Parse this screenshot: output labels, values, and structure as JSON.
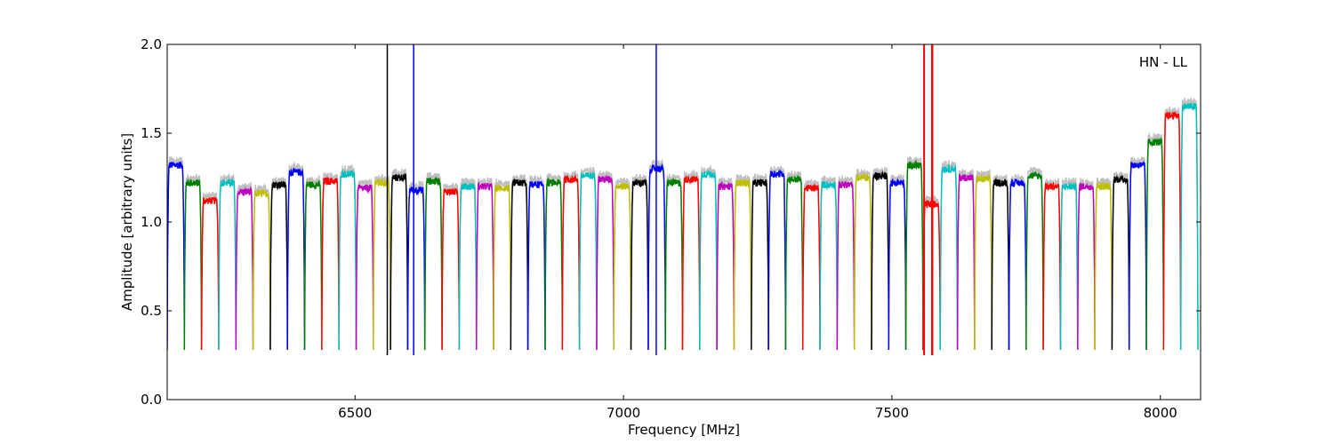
{
  "chart_data": {
    "type": "line",
    "annotation": "HN - LL",
    "xlabel": "Frequency [MHz]",
    "ylabel": "Amplitude [arbitrary units]",
    "xlim": [
      6150,
      8075
    ],
    "ylim": [
      0.0,
      2.0
    ],
    "x_ticks": [
      6500,
      7000,
      7500,
      8000
    ],
    "x_tick_labels": [
      "6500",
      "7000",
      "7500",
      "8000"
    ],
    "y_ticks": [
      0.0,
      0.5,
      1.0,
      1.5,
      2.0
    ],
    "y_tick_labels": [
      "0.0",
      "0.5",
      "1.0",
      "1.5",
      "2.0"
    ],
    "grid": false,
    "series_colors": [
      "#0000ff",
      "#008000",
      "#ff0000",
      "#00bfbf",
      "#bf00bf",
      "#bfbf00",
      "#000000"
    ],
    "reference_color": "#bfbfbf",
    "subband_width_mhz": 32,
    "subbands": [
      {
        "start": 6150,
        "level": 1.32
      },
      {
        "start": 6182,
        "level": 1.22
      },
      {
        "start": 6214,
        "level": 1.12
      },
      {
        "start": 6246,
        "level": 1.22
      },
      {
        "start": 6278,
        "level": 1.17
      },
      {
        "start": 6310,
        "level": 1.16
      },
      {
        "start": 6342,
        "level": 1.21
      },
      {
        "start": 6374,
        "level": 1.28
      },
      {
        "start": 6406,
        "level": 1.21
      },
      {
        "start": 6438,
        "level": 1.23
      },
      {
        "start": 6470,
        "level": 1.27
      },
      {
        "start": 6502,
        "level": 1.19
      },
      {
        "start": 6534,
        "level": 1.22
      },
      {
        "start": 6566,
        "level": 1.25,
        "spikes": [
          {
            "x": 6560,
            "y": 2.0,
            "width": 1.5
          }
        ]
      },
      {
        "start": 6598,
        "level": 1.18,
        "spikes": [
          {
            "x": 6609,
            "y": 2.0,
            "width": 1.5
          }
        ]
      },
      {
        "start": 6630,
        "level": 1.23
      },
      {
        "start": 6662,
        "level": 1.17
      },
      {
        "start": 6694,
        "level": 1.2
      },
      {
        "start": 6726,
        "level": 1.2
      },
      {
        "start": 6758,
        "level": 1.19
      },
      {
        "start": 6790,
        "level": 1.22
      },
      {
        "start": 6822,
        "level": 1.21
      },
      {
        "start": 6854,
        "level": 1.22
      },
      {
        "start": 6886,
        "level": 1.24
      },
      {
        "start": 6918,
        "level": 1.26
      },
      {
        "start": 6950,
        "level": 1.24
      },
      {
        "start": 6982,
        "level": 1.2
      },
      {
        "start": 7014,
        "level": 1.22
      },
      {
        "start": 7046,
        "level": 1.3,
        "spikes": [
          {
            "x": 7061,
            "y": 2.0,
            "width": 1.5
          }
        ]
      },
      {
        "start": 7078,
        "level": 1.22
      },
      {
        "start": 7110,
        "level": 1.24
      },
      {
        "start": 7142,
        "level": 1.27
      },
      {
        "start": 7174,
        "level": 1.2
      },
      {
        "start": 7206,
        "level": 1.22
      },
      {
        "start": 7238,
        "level": 1.22
      },
      {
        "start": 7270,
        "level": 1.27
      },
      {
        "start": 7302,
        "level": 1.24
      },
      {
        "start": 7334,
        "level": 1.19
      },
      {
        "start": 7366,
        "level": 1.21
      },
      {
        "start": 7398,
        "level": 1.21
      },
      {
        "start": 7430,
        "level": 1.25
      },
      {
        "start": 7462,
        "level": 1.26
      },
      {
        "start": 7494,
        "level": 1.22
      },
      {
        "start": 7526,
        "level": 1.32
      },
      {
        "start": 7558,
        "level": 1.1,
        "spikes": [
          {
            "x": 7560,
            "y": 2.0,
            "width": 2
          },
          {
            "x": 7575,
            "y": 2.0,
            "width": 2.5
          }
        ]
      },
      {
        "start": 7590,
        "level": 1.3
      },
      {
        "start": 7622,
        "level": 1.25
      },
      {
        "start": 7654,
        "level": 1.24
      },
      {
        "start": 7686,
        "level": 1.22
      },
      {
        "start": 7718,
        "level": 1.22
      },
      {
        "start": 7750,
        "level": 1.26
      },
      {
        "start": 7782,
        "level": 1.2
      },
      {
        "start": 7814,
        "level": 1.2
      },
      {
        "start": 7846,
        "level": 1.2
      },
      {
        "start": 7878,
        "level": 1.2
      },
      {
        "start": 7910,
        "level": 1.24
      },
      {
        "start": 7942,
        "level": 1.32
      },
      {
        "start": 7974,
        "level": 1.45
      },
      {
        "start": 8006,
        "level": 1.6
      },
      {
        "start": 8038,
        "level": 1.65
      }
    ]
  }
}
